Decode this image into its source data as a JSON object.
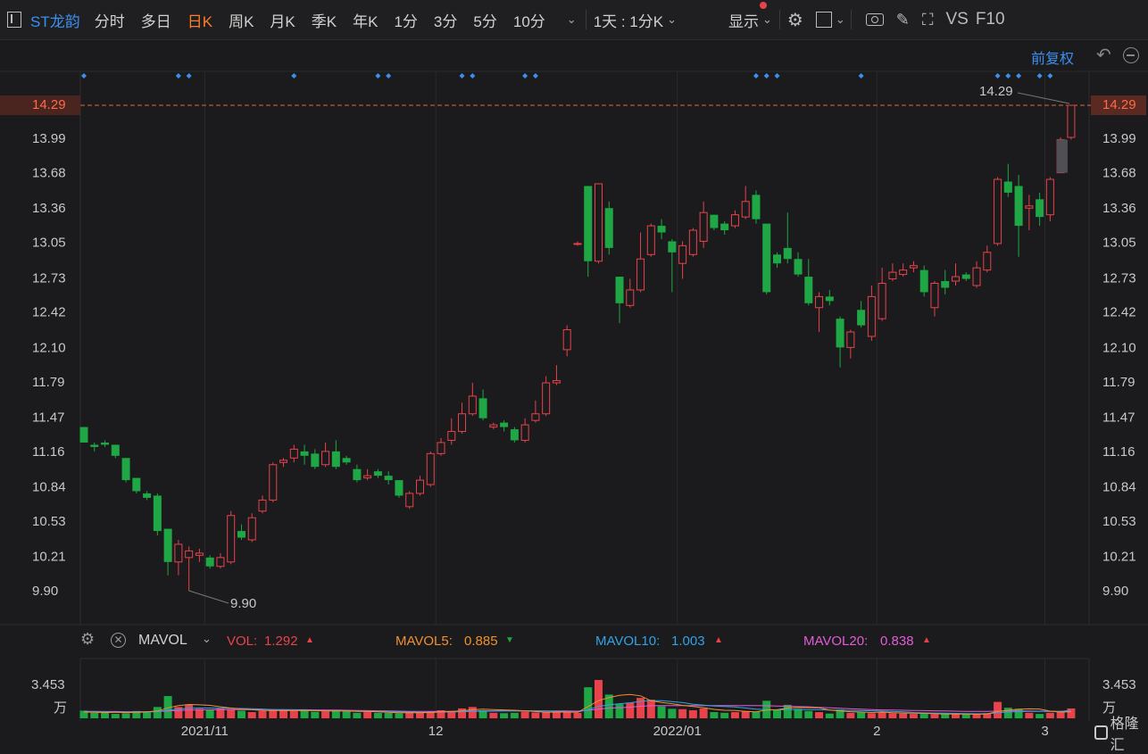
{
  "toolbar": {
    "symbol": "ST龙韵",
    "periods": [
      "分时",
      "多日",
      "日K",
      "周K",
      "月K",
      "季K",
      "年K",
      "1分",
      "3分",
      "5分",
      "10分"
    ],
    "active_period": "日K",
    "interval_select": "1天 : 1分K",
    "display_label": "显示",
    "vs_label": "VS",
    "f10_label": "F10"
  },
  "subbar": {
    "adjust_label": "前复权"
  },
  "colors": {
    "up": "#e8424a",
    "down": "#1fa745",
    "accent": "#3b8ff0",
    "active": "#ff7d2a",
    "hline": "#e06a3a"
  },
  "price_axis": {
    "ticks": [
      "14.29",
      "13.99",
      "13.68",
      "13.36",
      "13.05",
      "12.73",
      "12.42",
      "12.10",
      "11.79",
      "11.47",
      "11.16",
      "10.84",
      "10.53",
      "10.21",
      "9.90"
    ],
    "min": 9.9,
    "max": 14.29
  },
  "current_price_label": "14.29",
  "markers": {
    "high_label": "14.29",
    "low_label": "9.90"
  },
  "indicator": {
    "name": "MAVOL",
    "vol_label": "VOL:",
    "vol_value": "1.292",
    "ma5_label": "MAVOL5:",
    "ma5_value": "0.885",
    "ma10_label": "MAVOL10:",
    "ma10_value": "1.003",
    "ma20_label": "MAVOL20:",
    "ma20_value": "0.838",
    "axis_value": "3.453",
    "axis_unit": "万"
  },
  "x_axis": {
    "labels": [
      "2021/11",
      "12",
      "2022/01",
      "2",
      "3"
    ]
  },
  "watermark": "格隆汇",
  "chart_data": {
    "type": "candlestick",
    "ylim": [
      9.9,
      14.29
    ],
    "candles": [
      [
        11.38,
        11.24,
        11.38,
        11.24
      ],
      [
        11.22,
        11.2,
        11.24,
        11.16
      ],
      [
        11.24,
        11.22,
        11.26,
        11.2
      ],
      [
        11.22,
        11.12,
        11.22,
        11.1
      ],
      [
        11.1,
        10.9,
        11.1,
        10.88
      ],
      [
        10.92,
        10.8,
        10.92,
        10.78
      ],
      [
        10.78,
        10.74,
        10.8,
        10.72
      ],
      [
        10.76,
        10.44,
        10.78,
        10.4
      ],
      [
        10.46,
        10.16,
        10.46,
        10.04
      ],
      [
        10.16,
        10.32,
        10.36,
        10.04
      ],
      [
        10.2,
        10.26,
        10.3,
        9.9
      ],
      [
        10.22,
        10.24,
        10.28,
        10.16
      ],
      [
        10.2,
        10.12,
        10.22,
        10.1
      ],
      [
        10.12,
        10.2,
        10.24,
        10.1
      ],
      [
        10.16,
        10.58,
        10.62,
        10.14
      ],
      [
        10.44,
        10.38,
        10.5,
        10.36
      ],
      [
        10.36,
        10.56,
        10.6,
        10.34
      ],
      [
        10.62,
        10.72,
        10.76,
        10.6
      ],
      [
        10.72,
        11.04,
        11.06,
        10.7
      ],
      [
        11.06,
        11.08,
        11.1,
        11.02
      ],
      [
        11.1,
        11.18,
        11.22,
        11.06
      ],
      [
        11.16,
        11.12,
        11.22,
        11.04
      ],
      [
        11.14,
        11.02,
        11.18,
        11.0
      ],
      [
        11.04,
        11.16,
        11.24,
        11.02
      ],
      [
        11.16,
        11.02,
        11.26,
        11.0
      ],
      [
        11.1,
        11.06,
        11.12,
        11.04
      ],
      [
        11.0,
        10.9,
        11.04,
        10.88
      ],
      [
        10.92,
        10.94,
        11.0,
        10.9
      ],
      [
        10.98,
        10.94,
        11.0,
        10.92
      ],
      [
        10.94,
        10.9,
        10.98,
        10.86
      ],
      [
        10.9,
        10.76,
        10.9,
        10.74
      ],
      [
        10.66,
        10.78,
        10.8,
        10.64
      ],
      [
        10.78,
        10.9,
        10.94,
        10.76
      ],
      [
        10.86,
        11.14,
        11.16,
        10.84
      ],
      [
        11.14,
        11.24,
        11.28,
        11.12
      ],
      [
        11.26,
        11.34,
        11.46,
        11.22
      ],
      [
        11.34,
        11.5,
        11.6,
        11.32
      ],
      [
        11.5,
        11.66,
        11.78,
        11.48
      ],
      [
        11.64,
        11.46,
        11.72,
        11.44
      ],
      [
        11.38,
        11.4,
        11.42,
        11.36
      ],
      [
        11.42,
        11.38,
        11.44,
        11.34
      ],
      [
        11.36,
        11.26,
        11.38,
        11.24
      ],
      [
        11.26,
        11.4,
        11.46,
        11.24
      ],
      [
        11.44,
        11.5,
        11.62,
        11.42
      ],
      [
        11.5,
        11.78,
        11.84,
        11.48
      ],
      [
        11.78,
        11.8,
        11.94,
        11.76
      ],
      [
        12.08,
        12.26,
        12.3,
        12.02
      ],
      [
        13.04,
        13.04,
        13.06,
        13.02
      ],
      [
        13.56,
        12.88,
        13.56,
        12.74
      ],
      [
        12.88,
        13.58,
        13.58,
        12.86
      ],
      [
        13.36,
        13.0,
        13.42,
        12.94
      ],
      [
        12.74,
        12.5,
        12.74,
        12.32
      ],
      [
        12.48,
        12.62,
        12.72,
        12.46
      ],
      [
        12.62,
        12.9,
        13.14,
        12.6
      ],
      [
        12.94,
        13.2,
        13.22,
        12.92
      ],
      [
        13.2,
        13.14,
        13.26,
        13.08
      ],
      [
        13.06,
        12.96,
        13.08,
        12.6
      ],
      [
        12.86,
        13.02,
        13.06,
        12.72
      ],
      [
        12.94,
        13.16,
        13.18,
        12.92
      ],
      [
        13.06,
        13.32,
        13.42,
        13.0
      ],
      [
        13.3,
        13.18,
        13.3,
        13.16
      ],
      [
        13.22,
        13.16,
        13.24,
        13.12
      ],
      [
        13.2,
        13.3,
        13.34,
        13.18
      ],
      [
        13.28,
        13.42,
        13.56,
        13.26
      ],
      [
        13.48,
        13.26,
        13.52,
        13.22
      ],
      [
        13.22,
        12.6,
        13.22,
        12.58
      ],
      [
        12.94,
        12.86,
        12.96,
        12.82
      ],
      [
        13.0,
        12.9,
        13.32,
        12.86
      ],
      [
        12.9,
        12.76,
        12.96,
        12.74
      ],
      [
        12.74,
        12.5,
        12.9,
        12.48
      ],
      [
        12.46,
        12.56,
        12.6,
        12.24
      ],
      [
        12.56,
        12.52,
        12.62,
        12.48
      ],
      [
        12.36,
        12.1,
        12.38,
        11.92
      ],
      [
        12.1,
        12.24,
        12.26,
        12.0
      ],
      [
        12.44,
        12.3,
        12.52,
        12.28
      ],
      [
        12.2,
        12.56,
        12.66,
        12.16
      ],
      [
        12.36,
        12.68,
        12.82,
        12.34
      ],
      [
        12.72,
        12.78,
        12.86,
        12.7
      ],
      [
        12.76,
        12.8,
        12.86,
        12.74
      ],
      [
        12.82,
        12.84,
        12.88,
        12.78
      ],
      [
        12.8,
        12.6,
        12.84,
        12.56
      ],
      [
        12.46,
        12.68,
        12.7,
        12.38
      ],
      [
        12.7,
        12.64,
        12.8,
        12.58
      ],
      [
        12.7,
        12.74,
        12.86,
        12.66
      ],
      [
        12.76,
        12.72,
        12.78,
        12.7
      ],
      [
        12.66,
        12.82,
        12.88,
        12.64
      ],
      [
        12.8,
        12.96,
        13.02,
        12.78
      ],
      [
        13.04,
        13.62,
        13.64,
        13.02
      ],
      [
        13.6,
        13.5,
        13.76,
        13.46
      ],
      [
        13.56,
        13.2,
        13.66,
        12.92
      ],
      [
        13.36,
        13.38,
        13.48,
        13.16
      ],
      [
        13.44,
        13.28,
        13.5,
        13.2
      ],
      [
        13.3,
        13.62,
        13.64,
        13.24
      ],
      [
        13.68,
        13.98,
        14.0,
        13.68
      ],
      [
        14.0,
        14.29,
        14.29,
        13.98
      ]
    ],
    "volume": [
      0.42,
      0.3,
      0.35,
      0.24,
      0.28,
      0.4,
      0.32,
      0.62,
      1.22,
      0.62,
      0.74,
      0.52,
      0.46,
      0.56,
      0.5,
      0.42,
      0.34,
      0.4,
      0.48,
      0.44,
      0.4,
      0.42,
      0.36,
      0.38,
      0.44,
      0.38,
      0.3,
      0.34,
      0.3,
      0.3,
      0.28,
      0.34,
      0.3,
      0.38,
      0.44,
      0.4,
      0.54,
      0.62,
      0.44,
      0.3,
      0.28,
      0.3,
      0.36,
      0.32,
      0.36,
      0.32,
      0.32,
      0.3,
      1.7,
      2.1,
      1.3,
      0.78,
      0.86,
      1.12,
      1.02,
      0.66,
      0.52,
      0.5,
      0.44,
      0.54,
      0.34,
      0.3,
      0.34,
      0.4,
      0.36,
      0.96,
      0.46,
      0.74,
      0.52,
      0.4,
      0.34,
      0.26,
      0.48,
      0.3,
      0.34,
      0.28,
      0.32,
      0.28,
      0.26,
      0.24,
      0.24,
      0.22,
      0.22,
      0.24,
      0.22,
      0.22,
      0.28,
      0.9,
      0.58,
      0.52,
      0.3,
      0.24,
      0.3,
      0.34,
      0.54
    ],
    "ma5": [
      0.34,
      0.33,
      0.32,
      0.33,
      0.32,
      0.33,
      0.35,
      0.4,
      0.57,
      0.7,
      0.76,
      0.74,
      0.71,
      0.63,
      0.56,
      0.51,
      0.47,
      0.43,
      0.43,
      0.42,
      0.42,
      0.43,
      0.42,
      0.4,
      0.4,
      0.4,
      0.38,
      0.37,
      0.35,
      0.33,
      0.31,
      0.31,
      0.31,
      0.32,
      0.35,
      0.37,
      0.41,
      0.47,
      0.5,
      0.48,
      0.46,
      0.44,
      0.41,
      0.37,
      0.33,
      0.34,
      0.34,
      0.33,
      0.64,
      0.97,
      1.14,
      1.26,
      1.31,
      1.23,
      0.96,
      0.87,
      0.8,
      0.71,
      0.65,
      0.58,
      0.49,
      0.44,
      0.43,
      0.38,
      0.35,
      0.45,
      0.47,
      0.56,
      0.59,
      0.58,
      0.57,
      0.45,
      0.4,
      0.36,
      0.34,
      0.32,
      0.34,
      0.31,
      0.29,
      0.28,
      0.27,
      0.25,
      0.24,
      0.23,
      0.23,
      0.22,
      0.24,
      0.37,
      0.44,
      0.5,
      0.52,
      0.51,
      0.39,
      0.34,
      0.36
    ],
    "ma10": [
      0.36,
      0.35,
      0.34,
      0.34,
      0.33,
      0.33,
      0.34,
      0.37,
      0.45,
      0.51,
      0.55,
      0.56,
      0.56,
      0.55,
      0.55,
      0.54,
      0.53,
      0.51,
      0.48,
      0.46,
      0.45,
      0.45,
      0.43,
      0.41,
      0.41,
      0.4,
      0.39,
      0.38,
      0.37,
      0.36,
      0.35,
      0.34,
      0.33,
      0.33,
      0.34,
      0.35,
      0.36,
      0.39,
      0.41,
      0.41,
      0.41,
      0.41,
      0.41,
      0.41,
      0.4,
      0.38,
      0.36,
      0.34,
      0.47,
      0.65,
      0.74,
      0.8,
      0.85,
      0.93,
      0.97,
      0.97,
      0.92,
      0.86,
      0.77,
      0.72,
      0.67,
      0.65,
      0.62,
      0.56,
      0.5,
      0.47,
      0.46,
      0.48,
      0.48,
      0.47,
      0.47,
      0.45,
      0.44,
      0.42,
      0.42,
      0.41,
      0.39,
      0.37,
      0.35,
      0.32,
      0.3,
      0.29,
      0.28,
      0.27,
      0.26,
      0.25,
      0.25,
      0.31,
      0.34,
      0.37,
      0.38,
      0.38,
      0.38,
      0.38,
      0.44
    ],
    "ma20": [
      0.38,
      0.38,
      0.37,
      0.37,
      0.36,
      0.36,
      0.36,
      0.37,
      0.4,
      0.43,
      0.45,
      0.46,
      0.47,
      0.47,
      0.48,
      0.48,
      0.48,
      0.48,
      0.48,
      0.48,
      0.47,
      0.47,
      0.46,
      0.45,
      0.45,
      0.44,
      0.43,
      0.42,
      0.41,
      0.4,
      0.39,
      0.38,
      0.38,
      0.38,
      0.38,
      0.38,
      0.38,
      0.38,
      0.39,
      0.39,
      0.4,
      0.4,
      0.4,
      0.4,
      0.4,
      0.4,
      0.4,
      0.39,
      0.44,
      0.5,
      0.56,
      0.58,
      0.61,
      0.66,
      0.69,
      0.7,
      0.7,
      0.7,
      0.7,
      0.7,
      0.7,
      0.7,
      0.7,
      0.7,
      0.7,
      0.69,
      0.67,
      0.66,
      0.64,
      0.63,
      0.6,
      0.57,
      0.55,
      0.52,
      0.5,
      0.48,
      0.46,
      0.45,
      0.44,
      0.43,
      0.42,
      0.41,
      0.4,
      0.39,
      0.38,
      0.38,
      0.38,
      0.39,
      0.4,
      0.4,
      0.4,
      0.39,
      0.38,
      0.38,
      0.38
    ]
  }
}
